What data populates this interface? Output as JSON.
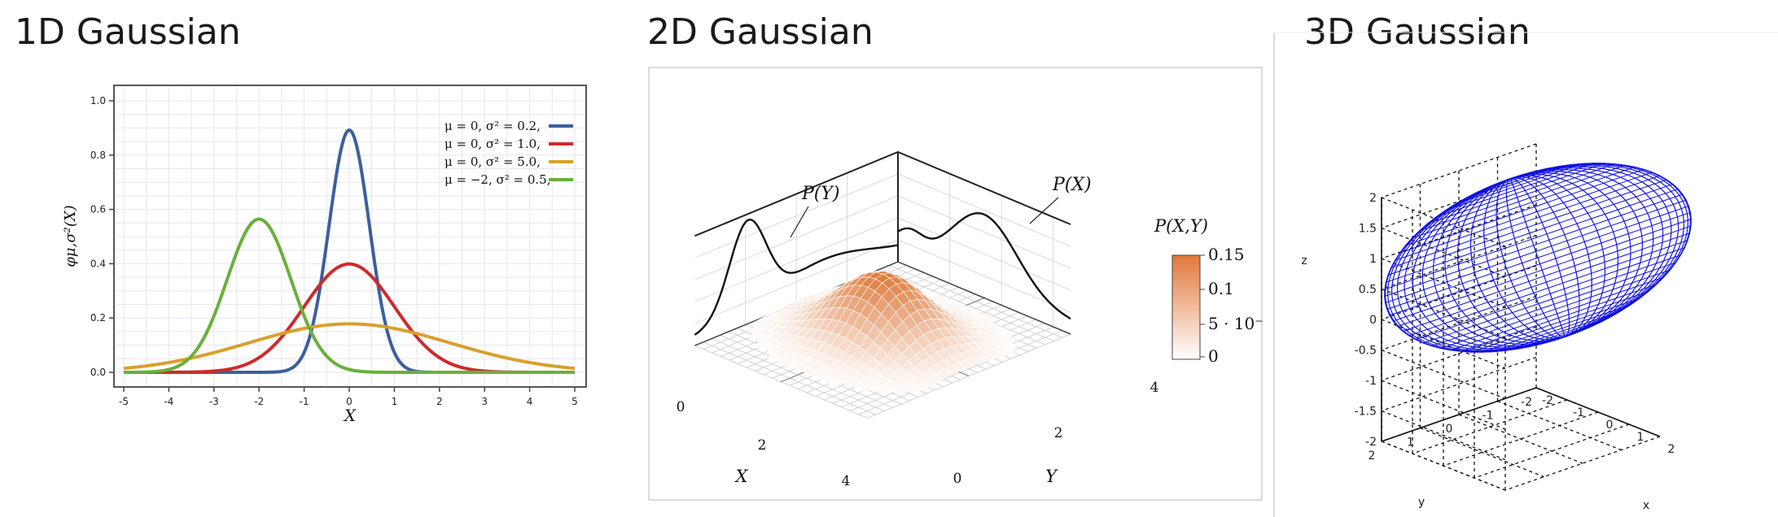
{
  "panels": {
    "p1_title": "1D Gaussian",
    "p2_title": "2D Gaussian",
    "p3_title": "3D Gaussian"
  },
  "chart_data": [
    {
      "type": "line",
      "title": "1D Gaussian",
      "xlabel": "X",
      "ylabel": "φμ,σ²(X)",
      "xlim": [
        -5,
        5
      ],
      "ylim": [
        0,
        1.0
      ],
      "xticks": [
        -5,
        -4,
        -3,
        -2,
        -1,
        0,
        1,
        2,
        3,
        4,
        5
      ],
      "yticks": [
        "0.0",
        "0.2",
        "0.4",
        "0.6",
        "0.8",
        "1.0"
      ],
      "grid": true,
      "legend_position": "top-right",
      "series": [
        {
          "name": "μ = 0,   σ² = 0.2,",
          "mu": 0,
          "var": 0.2,
          "color": "#3d5f9f"
        },
        {
          "name": "μ = 0,   σ² = 1.0,",
          "mu": 0,
          "var": 1.0,
          "color": "#cc2b2b"
        },
        {
          "name": "μ = 0,   σ² = 5.0,",
          "mu": 0,
          "var": 5.0,
          "color": "#d9a02b"
        },
        {
          "name": "μ = −2, σ² = 0.5,",
          "mu": -2,
          "var": 0.5,
          "color": "#6aaf3a"
        }
      ]
    },
    {
      "type": "surface",
      "title": "2D Gaussian",
      "xlabel": "X",
      "ylabel": "Y",
      "zlabel": "P(X,Y)",
      "marginal_labels": [
        "P(Y)",
        "P(X)"
      ],
      "x_ticks": [
        "0",
        "2",
        "4"
      ],
      "y_ticks": [
        "0",
        "2",
        "4"
      ],
      "colorbar_ticks": [
        "0.15",
        "0.1",
        "5 · 10⁻",
        "0"
      ],
      "colorbar_colors": [
        "#e0783a",
        "#ffffff"
      ]
    },
    {
      "type": "3d-ellipsoid",
      "title": "3D Gaussian",
      "xlabel": "x",
      "ylabel": "y",
      "zlabel": "z",
      "x_ticks": [
        "-2",
        "-1",
        "0",
        "1",
        "2"
      ],
      "y_ticks": [
        "-2",
        "-1",
        "0",
        "1",
        "2"
      ],
      "z_ticks": [
        "2",
        "1.5",
        "1",
        "0.5",
        "0",
        "-0.5",
        "-1",
        "-1.5",
        "-2"
      ],
      "color": "#1010e0"
    }
  ]
}
